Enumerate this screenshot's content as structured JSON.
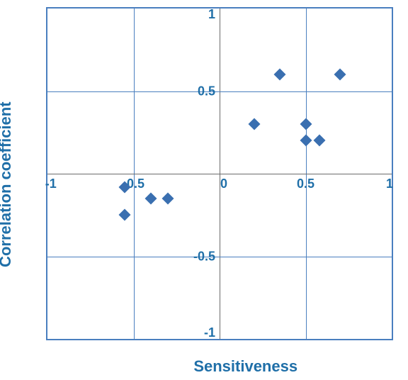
{
  "chart": {
    "type": "scatter",
    "y_title": "Correlation coefficient",
    "x_title": "Sensitiveness",
    "title_fontsize": 22,
    "title_color": "#1f6fa8",
    "tick_fontsize": 18,
    "tick_color": "#1f6fa8",
    "background_color": "#ffffff",
    "border_color": "#4a7fbf",
    "grid_color": "#4a7fbf",
    "zero_line_color": "#6b6b6b",
    "marker_color": "#3a6fb0",
    "marker_style": "diamond",
    "marker_size": 12,
    "xlim": [
      -1,
      1
    ],
    "ylim": [
      -1,
      1
    ],
    "xticks": [
      -1,
      -0.5,
      0,
      0.5,
      1
    ],
    "yticks": [
      -1,
      -0.5,
      0,
      0.5,
      1
    ],
    "xtick_labels": [
      "-1",
      "-0.5",
      "0",
      "0.5",
      "1"
    ],
    "ytick_labels": [
      "-1",
      "-0.5",
      "",
      "0.5",
      "1"
    ],
    "points": [
      {
        "x": -0.55,
        "y": -0.08
      },
      {
        "x": -0.55,
        "y": -0.25
      },
      {
        "x": -0.4,
        "y": -0.15
      },
      {
        "x": -0.3,
        "y": -0.15
      },
      {
        "x": 0.2,
        "y": 0.3
      },
      {
        "x": 0.35,
        "y": 0.6
      },
      {
        "x": 0.5,
        "y": 0.3
      },
      {
        "x": 0.5,
        "y": 0.2
      },
      {
        "x": 0.58,
        "y": 0.2
      },
      {
        "x": 0.7,
        "y": 0.6
      }
    ]
  }
}
